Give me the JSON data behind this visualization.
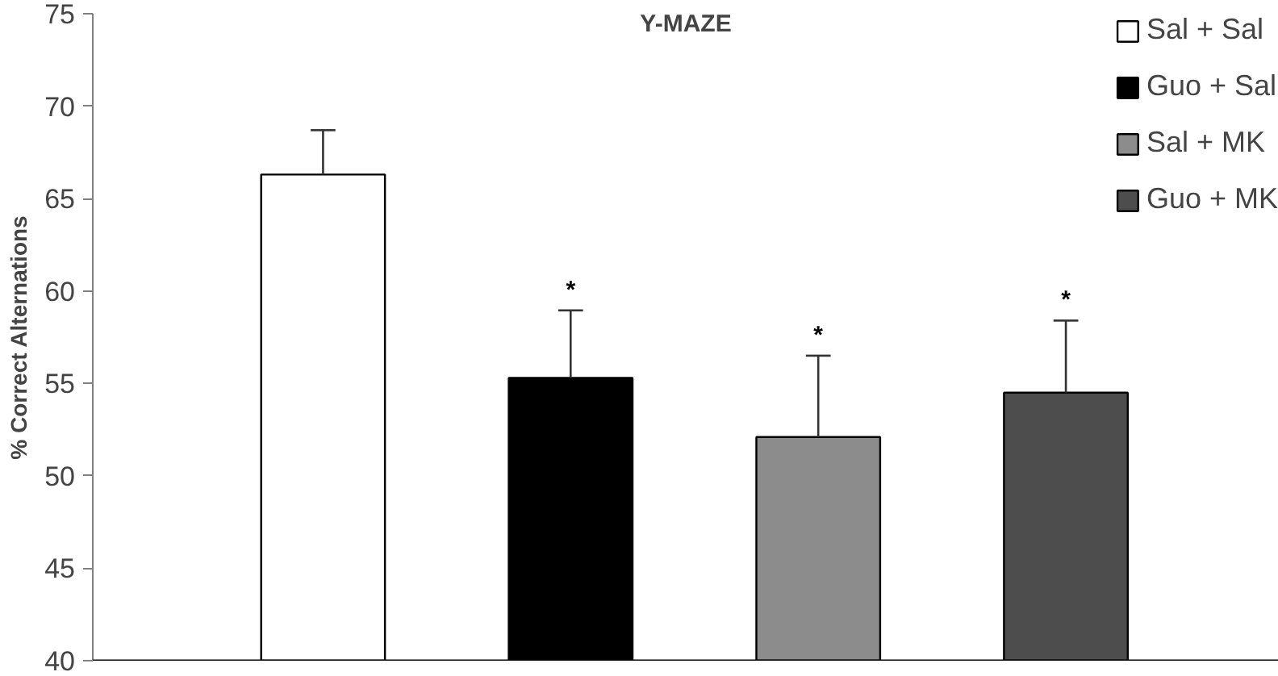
{
  "chart_data": {
    "type": "bar",
    "title": "Y-MAZE",
    "ylabel": "% Correct Alternations",
    "categories": [
      null,
      null,
      null,
      null
    ],
    "series": [
      {
        "name": "Sal + Sal",
        "color": "#ffffff",
        "values": [
          66.3,
          null,
          null,
          null
        ],
        "errors": [
          2.4,
          null,
          null,
          null
        ]
      },
      {
        "name": "Guo + Sal",
        "color": "#000000",
        "values": [
          null,
          55.3,
          null,
          null
        ],
        "errors": [
          null,
          3.65,
          null,
          null
        ]
      },
      {
        "name": "Sal + MK",
        "color": "#8c8c8c",
        "values": [
          null,
          null,
          52.1,
          null
        ],
        "errors": [
          null,
          null,
          4.4,
          null
        ]
      },
      {
        "name": "Guo + MK",
        "color": "#4d4d4d",
        "values": [
          null,
          null,
          null,
          54.5
        ],
        "errors": [
          null,
          null,
          null,
          3.9
        ]
      }
    ],
    "annotations": [
      "*",
      "*",
      "*"
    ],
    "ylim": [
      40,
      75
    ],
    "yticks": [
      40,
      45,
      50,
      55,
      60,
      65,
      70,
      75
    ],
    "grid": false,
    "legend": "top right"
  }
}
